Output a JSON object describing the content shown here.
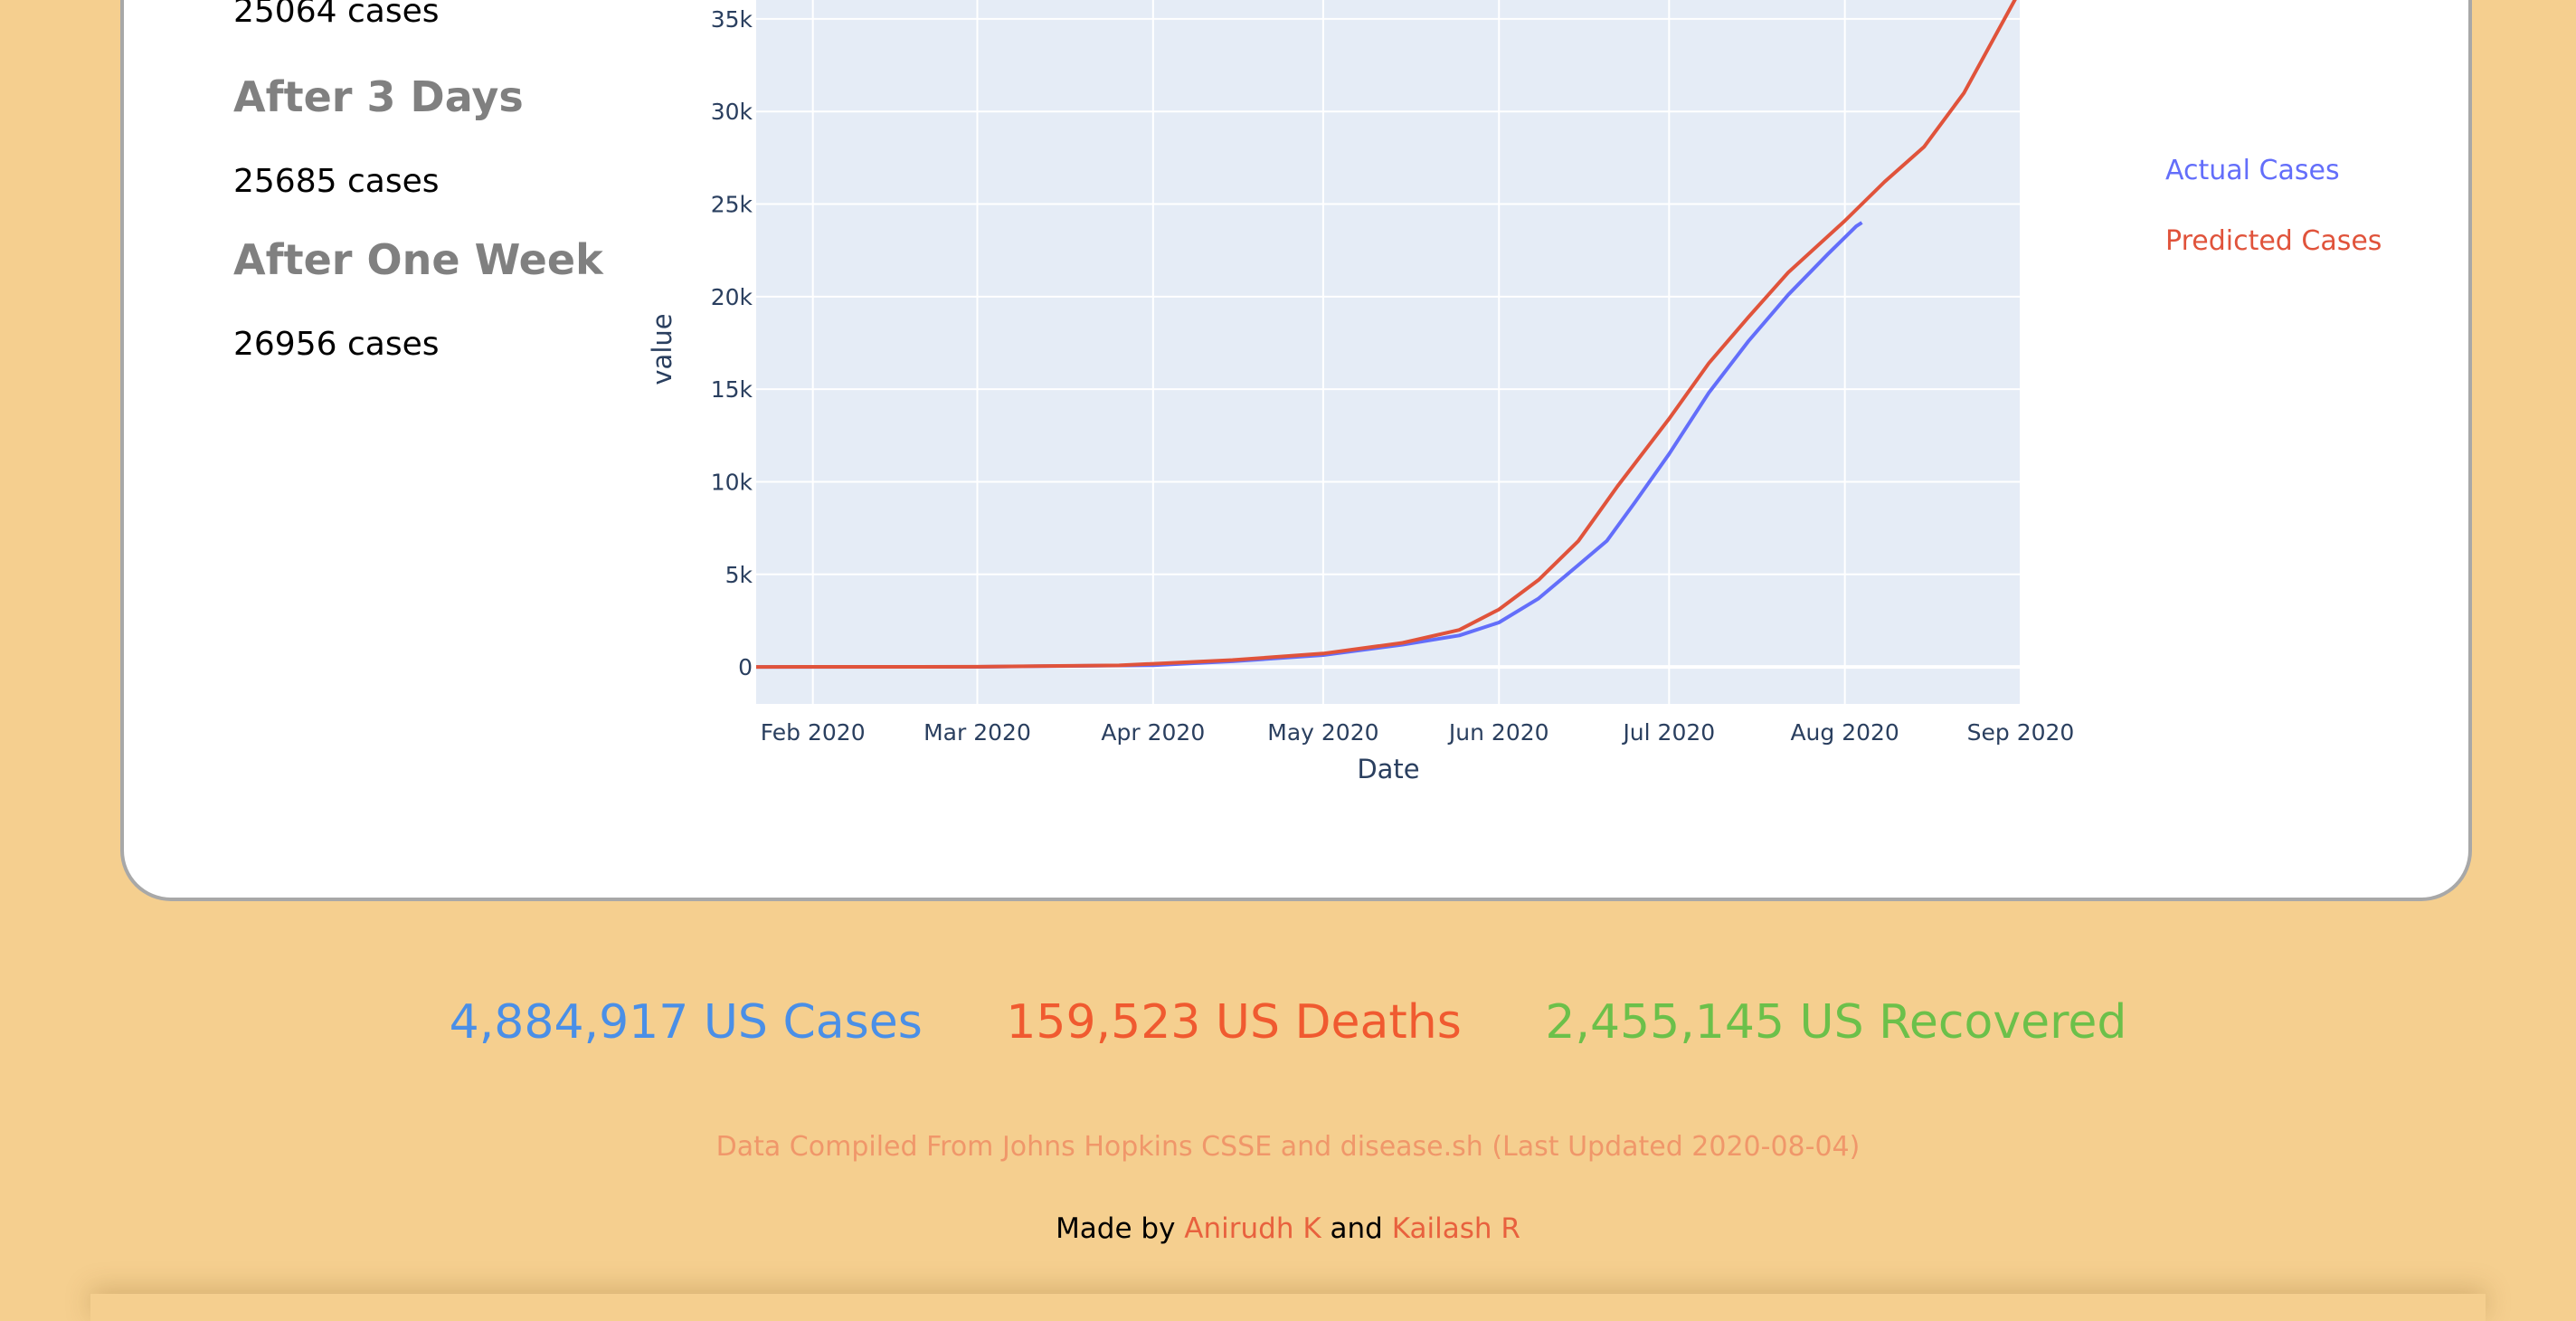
{
  "forecast": {
    "first_value": "25064 cases",
    "after_3_days_heading": "After 3 Days",
    "after_3_days_value": "25685 cases",
    "after_week_heading": "After One Week",
    "after_week_value": "26956 cases"
  },
  "chart_data": {
    "type": "line",
    "xlabel": "Date",
    "ylabel": "value",
    "x_ticks": [
      "Feb 2020",
      "Mar 2020",
      "Apr 2020",
      "May 2020",
      "Jun 2020",
      "Jul 2020",
      "Aug 2020",
      "Sep 2020"
    ],
    "y_ticks": [
      "0",
      "5k",
      "10k",
      "15k",
      "20k",
      "25k",
      "30k",
      "35k"
    ],
    "ylim": [
      -2000,
      37000
    ],
    "xlim": [
      "2020-01-22",
      "2020-09-01"
    ],
    "grid": true,
    "legend_position": "right",
    "series": [
      {
        "name": "Actual Cases",
        "color": "#636efa",
        "points": [
          [
            "2020-01-22",
            0
          ],
          [
            "2020-03-01",
            5
          ],
          [
            "2020-04-01",
            90
          ],
          [
            "2020-04-15",
            300
          ],
          [
            "2020-05-01",
            640
          ],
          [
            "2020-05-15",
            1200
          ],
          [
            "2020-05-25",
            1700
          ],
          [
            "2020-06-01",
            2400
          ],
          [
            "2020-06-08",
            3700
          ],
          [
            "2020-06-15",
            5500
          ],
          [
            "2020-06-20",
            6800
          ],
          [
            "2020-06-25",
            8900
          ],
          [
            "2020-07-01",
            11500
          ],
          [
            "2020-07-08",
            14800
          ],
          [
            "2020-07-15",
            17600
          ],
          [
            "2020-07-22",
            20100
          ],
          [
            "2020-07-29",
            22300
          ],
          [
            "2020-08-03",
            23800
          ],
          [
            "2020-08-04",
            24000
          ]
        ]
      },
      {
        "name": "Predicted Cases",
        "color": "#e0533b",
        "points": [
          [
            "2020-01-22",
            0
          ],
          [
            "2020-03-01",
            10
          ],
          [
            "2020-03-26",
            80
          ],
          [
            "2020-04-15",
            370
          ],
          [
            "2020-05-01",
            720
          ],
          [
            "2020-05-15",
            1300
          ],
          [
            "2020-05-25",
            2000
          ],
          [
            "2020-06-01",
            3100
          ],
          [
            "2020-06-08",
            4700
          ],
          [
            "2020-06-15",
            6800
          ],
          [
            "2020-06-22",
            9800
          ],
          [
            "2020-07-01",
            13400
          ],
          [
            "2020-07-08",
            16400
          ],
          [
            "2020-07-15",
            18900
          ],
          [
            "2020-07-22",
            21300
          ],
          [
            "2020-08-01",
            24100
          ],
          [
            "2020-08-08",
            26200
          ],
          [
            "2020-08-15",
            28100
          ],
          [
            "2020-08-22",
            31000
          ],
          [
            "2020-09-01",
            36600
          ]
        ]
      }
    ]
  },
  "totals": {
    "cases": "4,884,917 US Cases",
    "deaths": "159,523 US Deaths",
    "recovered": "2,455,145 US Recovered",
    "cases_color": "#4a8fe7",
    "deaths_color": "#f05a30",
    "recovered_color": "#6cc04a"
  },
  "footer": {
    "source": "Data Compiled From Johns Hopkins CSSE and disease.sh (Last Updated 2020-08-04)",
    "made_by_prefix": "Made by",
    "author1": "Anirudh K",
    "and": "and",
    "author2": "Kailash R"
  }
}
